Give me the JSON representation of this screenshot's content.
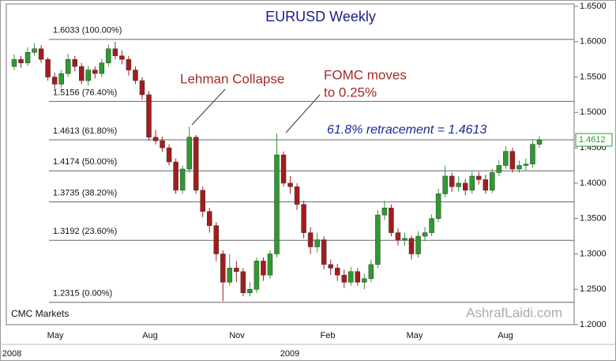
{
  "chart_data": {
    "type": "candlestick",
    "title": "EURUSD Weekly",
    "source": "CMC Markets",
    "watermark": "AshrafLaidi.com",
    "annotations": [
      "Lehman Collapse",
      "FOMC moves",
      "to 0.25%",
      "61.8% retracement = 1.4613"
    ],
    "up_color": "#2f9a2f",
    "down_color": "#a31c1c",
    "ylim": [
      1.2,
      1.65
    ],
    "yticks": [
      {
        "value": 1.2,
        "label": "1.2000"
      },
      {
        "value": 1.25,
        "label": "1.2500"
      },
      {
        "value": 1.3,
        "label": "1.3000"
      },
      {
        "value": 1.35,
        "label": "1.3500"
      },
      {
        "value": 1.4,
        "label": "1.4000"
      },
      {
        "value": 1.45,
        "label": "1.4500"
      },
      {
        "value": 1.5,
        "label": "1.5000"
      },
      {
        "value": 1.55,
        "label": "1.5500"
      },
      {
        "value": 1.6,
        "label": "1.6000"
      },
      {
        "value": 1.65,
        "label": "1.6500"
      }
    ],
    "fib_levels": [
      {
        "value": 1.6033,
        "label": "1.6033  (100.00%)"
      },
      {
        "value": 1.5156,
        "label": "1.5156  (76.40%)"
      },
      {
        "value": 1.4613,
        "label": "1.4613  (61.80%)"
      },
      {
        "value": 1.4174,
        "label": "1.4174  (50.00%)"
      },
      {
        "value": 1.3735,
        "label": "1.3735  (38.20%)"
      },
      {
        "value": 1.3192,
        "label": "1.3192  (23.60%)"
      },
      {
        "value": 1.2315,
        "label": "1.2315  (0.00%)"
      }
    ],
    "last_price": {
      "value": 1.4612,
      "label": "1.4612"
    },
    "x_labels": [
      "May",
      "Aug",
      "Nov",
      "Feb",
      "May",
      "Aug"
    ],
    "year_labels": [
      "2008",
      "2009"
    ],
    "open": [
      1.565,
      1.575,
      1.57,
      1.585,
      1.59,
      1.575,
      1.55,
      1.54,
      1.555,
      1.575,
      1.565,
      1.545,
      1.56,
      1.555,
      1.57,
      1.59,
      1.58,
      1.575,
      1.56,
      1.545,
      1.525,
      1.465,
      1.46,
      1.45,
      1.43,
      1.39,
      1.42,
      1.465,
      1.39,
      1.36,
      1.34,
      1.3,
      1.26,
      1.28,
      1.275,
      1.245,
      1.25,
      1.29,
      1.27,
      1.3,
      1.44,
      1.4,
      1.395,
      1.37,
      1.33,
      1.31,
      1.32,
      1.285,
      1.28,
      1.27,
      1.26,
      1.275,
      1.26,
      1.265,
      1.285,
      1.355,
      1.365,
      1.33,
      1.32,
      1.322,
      1.3,
      1.325,
      1.33,
      1.35,
      1.385,
      1.41,
      1.395,
      1.4,
      1.39,
      1.41,
      1.405,
      1.39,
      1.415,
      1.425,
      1.445,
      1.42,
      1.425,
      1.427,
      1.455
    ],
    "high": [
      1.582,
      1.58,
      1.592,
      1.598,
      1.595,
      1.578,
      1.556,
      1.56,
      1.583,
      1.58,
      1.57,
      1.566,
      1.565,
      1.576,
      1.596,
      1.6,
      1.588,
      1.58,
      1.565,
      1.55,
      1.53,
      1.475,
      1.466,
      1.455,
      1.435,
      1.425,
      1.48,
      1.468,
      1.395,
      1.365,
      1.345,
      1.305,
      1.3,
      1.29,
      1.28,
      1.26,
      1.295,
      1.295,
      1.305,
      1.47,
      1.445,
      1.41,
      1.4,
      1.375,
      1.338,
      1.33,
      1.325,
      1.292,
      1.286,
      1.278,
      1.282,
      1.28,
      1.272,
      1.292,
      1.362,
      1.375,
      1.37,
      1.336,
      1.33,
      1.326,
      1.332,
      1.338,
      1.356,
      1.392,
      1.425,
      1.415,
      1.41,
      1.406,
      1.418,
      1.416,
      1.412,
      1.42,
      1.432,
      1.452,
      1.45,
      1.432,
      1.435,
      1.462,
      1.466
    ],
    "low": [
      1.56,
      1.563,
      1.566,
      1.58,
      1.57,
      1.545,
      1.533,
      1.535,
      1.55,
      1.558,
      1.54,
      1.538,
      1.548,
      1.55,
      1.565,
      1.575,
      1.568,
      1.552,
      1.54,
      1.518,
      1.46,
      1.455,
      1.444,
      1.425,
      1.385,
      1.385,
      1.415,
      1.385,
      1.352,
      1.33,
      1.29,
      1.233,
      1.255,
      1.26,
      1.24,
      1.24,
      1.245,
      1.262,
      1.265,
      1.295,
      1.395,
      1.385,
      1.362,
      1.322,
      1.3,
      1.302,
      1.278,
      1.27,
      1.262,
      1.252,
      1.255,
      1.255,
      1.25,
      1.26,
      1.28,
      1.348,
      1.325,
      1.312,
      1.312,
      1.292,
      1.295,
      1.318,
      1.325,
      1.345,
      1.38,
      1.388,
      1.388,
      1.383,
      1.385,
      1.398,
      1.385,
      1.386,
      1.41,
      1.42,
      1.415,
      1.415,
      1.418,
      1.422,
      1.45
    ],
    "close": [
      1.575,
      1.57,
      1.585,
      1.59,
      1.575,
      1.55,
      1.54,
      1.555,
      1.575,
      1.565,
      1.545,
      1.56,
      1.555,
      1.57,
      1.59,
      1.58,
      1.575,
      1.56,
      1.545,
      1.525,
      1.465,
      1.46,
      1.45,
      1.43,
      1.39,
      1.42,
      1.465,
      1.39,
      1.36,
      1.34,
      1.3,
      1.26,
      1.28,
      1.275,
      1.245,
      1.25,
      1.29,
      1.27,
      1.3,
      1.44,
      1.4,
      1.395,
      1.37,
      1.33,
      1.31,
      1.32,
      1.285,
      1.28,
      1.27,
      1.26,
      1.275,
      1.26,
      1.265,
      1.285,
      1.355,
      1.365,
      1.33,
      1.32,
      1.322,
      1.3,
      1.325,
      1.33,
      1.35,
      1.385,
      1.41,
      1.395,
      1.4,
      1.39,
      1.41,
      1.405,
      1.39,
      1.415,
      1.425,
      1.445,
      1.42,
      1.425,
      1.427,
      1.455,
      1.4612
    ]
  }
}
